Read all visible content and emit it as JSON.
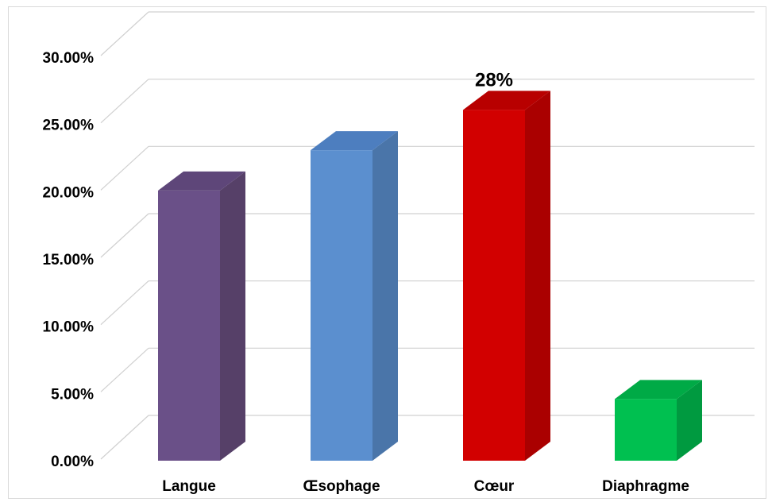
{
  "chart_data": {
    "type": "bar",
    "categories": [
      "Langue",
      "Œsophage",
      "Cœur",
      "Diaphragme"
    ],
    "values": [
      21.5,
      24.5,
      27.5,
      6
    ],
    "data_labels": [
      "",
      "",
      "28%",
      ""
    ],
    "ylim": [
      0,
      30
    ],
    "y_ticks": [
      "0.00%",
      "5.00%",
      "10.00%",
      "15.00%",
      "20.00%",
      "25.00%",
      "30.00%"
    ],
    "colors": [
      "#6a5088",
      "#5b8fcf",
      "#d20000",
      "#00c050"
    ],
    "side_colors": [
      "#564068",
      "#4a75a9",
      "#aa0000",
      "#009a40"
    ],
    "top_colors": [
      "#5e4679",
      "#4d7ebf",
      "#b80000",
      "#00aa46"
    ],
    "grid": true,
    "style": "3d-column"
  }
}
